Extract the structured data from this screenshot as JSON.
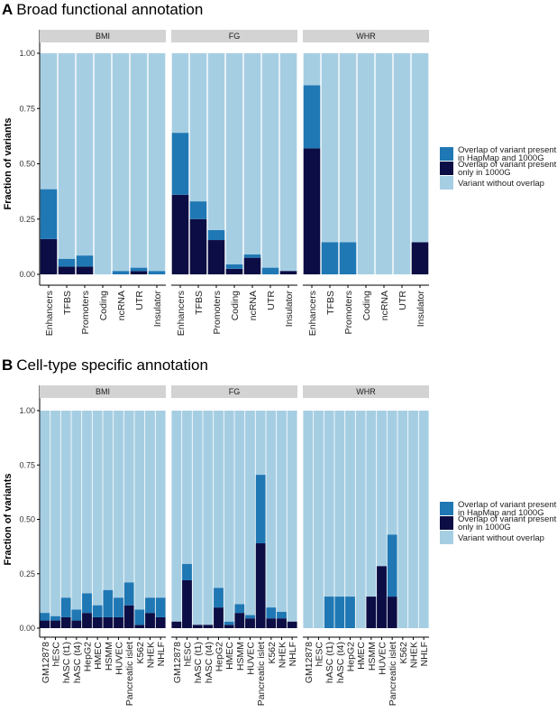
{
  "colors": {
    "without": "#a6cee3",
    "hapmap_1000g": "#1f78b4",
    "only_1000g": "#0d0d45",
    "strip": "#d3d3d3"
  },
  "legend": [
    {
      "key": "hapmap_1000g",
      "label_lines": [
        "Overlap of variant present",
        "in HapMap and 1000G"
      ]
    },
    {
      "key": "only_1000g",
      "label_lines": [
        "Overlap of variant present",
        "only in 1000G"
      ]
    },
    {
      "key": "without",
      "label_lines": [
        "Variant without overlap"
      ]
    }
  ],
  "chart_data": [
    {
      "type": "bar",
      "stacked": true,
      "panel_letter": "A",
      "title": "Broad functional annotation",
      "ylabel": "Fraction of variants",
      "ylim": [
        0,
        1
      ],
      "yticks": [
        "0.00",
        "0.25",
        "0.50",
        "0.75",
        "1.00"
      ],
      "facets": [
        "BMI",
        "FG",
        "WHR"
      ],
      "categories": [
        "Enhancers",
        "TFBS",
        "Promoters",
        "Coding",
        "ncRNA",
        "UTR",
        "Insulator"
      ],
      "series": [
        {
          "key": "only_1000g",
          "name": "Overlap of variant present only in 1000G",
          "values": [
            [
              0.16,
              0.035,
              0.035,
              0,
              0,
              0.015,
              0
            ],
            [
              0.36,
              0.25,
              0.155,
              0.025,
              0.075,
              0,
              0.015
            ],
            [
              0.57,
              0,
              0,
              0,
              0,
              0,
              0.145
            ]
          ]
        },
        {
          "key": "hapmap_1000g",
          "name": "Overlap of variant present in HapMap and 1000G",
          "values": [
            [
              0.225,
              0.035,
              0.05,
              0,
              0.015,
              0.015,
              0.015
            ],
            [
              0.28,
              0.08,
              0.045,
              0.02,
              0.015,
              0.03,
              0
            ],
            [
              0.285,
              0.145,
              0.145,
              0,
              0,
              0,
              0
            ]
          ]
        }
      ]
    },
    {
      "type": "bar",
      "stacked": true,
      "panel_letter": "B",
      "title": "Cell-type specific annotation",
      "ylabel": "Fraction of variants",
      "ylim": [
        0,
        1
      ],
      "yticks": [
        "0.00",
        "0.25",
        "0.50",
        "0.75",
        "1.00"
      ],
      "facets": [
        "BMI",
        "FG",
        "WHR"
      ],
      "categories": [
        "GM12878",
        "hESC",
        "hASC (t1)",
        "hASC (t4)",
        "HepG2",
        "HMEC",
        "HSMM",
        "HUVEC",
        "Pancreatic islet",
        "K562",
        "NHEK",
        "NHLF"
      ],
      "series": [
        {
          "key": "only_1000g",
          "name": "Overlap of variant present only in 1000G",
          "values": [
            [
              0.035,
              0.035,
              0.05,
              0.035,
              0.07,
              0.05,
              0.05,
              0.05,
              0.105,
              0.015,
              0.07,
              0.05
            ],
            [
              0.03,
              0.22,
              0.015,
              0.015,
              0.095,
              0.015,
              0.07,
              0.045,
              0.39,
              0.045,
              0.045,
              0.03
            ],
            [
              0,
              0,
              0,
              0,
              0,
              0,
              0.145,
              0.285,
              0.145,
              0,
              0,
              0
            ]
          ]
        },
        {
          "key": "hapmap_1000g",
          "name": "Overlap of variant present in HapMap and 1000G",
          "values": [
            [
              0.035,
              0.02,
              0.09,
              0.05,
              0.09,
              0.055,
              0.125,
              0.09,
              0.105,
              0.07,
              0.07,
              0.09
            ],
            [
              0,
              0.075,
              0,
              0,
              0.09,
              0.015,
              0.04,
              0.015,
              0.315,
              0.05,
              0.03,
              0
            ],
            [
              0,
              0,
              0.145,
              0.145,
              0.145,
              0,
              0,
              0,
              0.285,
              0,
              0,
              0
            ]
          ]
        }
      ]
    }
  ]
}
